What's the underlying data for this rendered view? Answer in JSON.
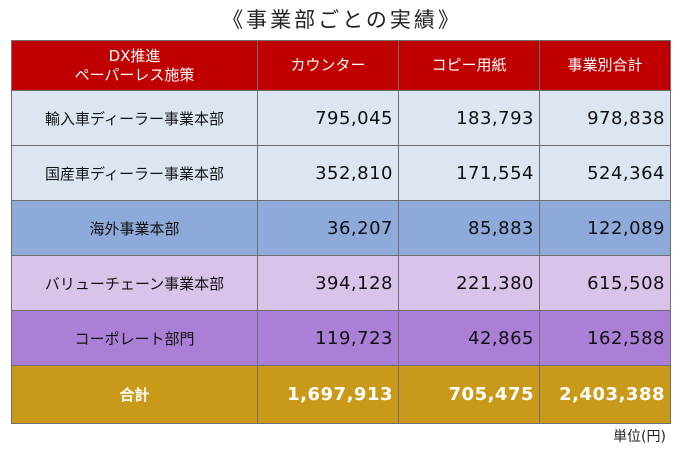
{
  "title": "《事業部ごとの実績》",
  "headers": {
    "policy_line1": "DX推進",
    "policy_line2": "ペーパーレス施策",
    "counter": "カウンター",
    "copy_paper": "コピー用紙",
    "subtotal": "事業別合計"
  },
  "rows": [
    {
      "dept": "輸入車ディーラー事業本部",
      "counter": "795,045",
      "copy_paper": "183,793",
      "subtotal": "978,838",
      "color": "#dce6f2"
    },
    {
      "dept": "国産車ディーラー事業本部",
      "counter": "352,810",
      "copy_paper": "171,554",
      "subtotal": "524,364",
      "color": "#dce6f2"
    },
    {
      "dept": "海外事業本部",
      "counter": "36,207",
      "copy_paper": "85,883",
      "subtotal": "122,089",
      "color": "#8eaadb"
    },
    {
      "dept": "バリューチェーン事業本部",
      "counter": "394,128",
      "copy_paper": "221,380",
      "subtotal": "615,508",
      "color": "#d9c3ea"
    },
    {
      "dept": "コーポレート部門",
      "counter": "119,723",
      "copy_paper": "42,865",
      "subtotal": "162,588",
      "color": "#ab7fd6"
    }
  ],
  "total": {
    "label": "合計",
    "counter": "1,697,913",
    "copy_paper": "705,475",
    "subtotal": "2,403,388",
    "color": "#c9991a"
  },
  "unit": "単位(円)",
  "colors": {
    "header": "#c00000",
    "border": "#6e6e6e"
  }
}
